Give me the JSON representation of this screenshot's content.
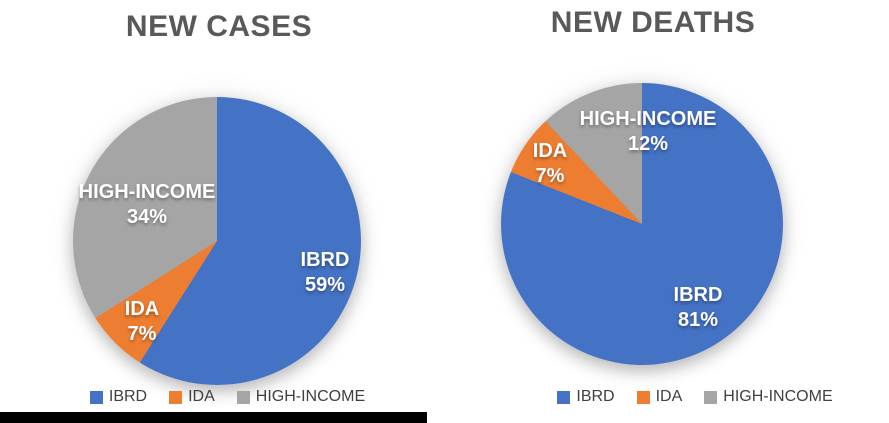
{
  "palette": {
    "ibrd_blue": "#4472C4",
    "ida_orange": "#ED7D31",
    "high_income_gray": "#A5A5A5",
    "title_text": "#595959",
    "legend_text": "#404040",
    "data_label_text": "#FFFFFF",
    "bottom_bar": "#000000"
  },
  "chart_data": [
    {
      "type": "pie",
      "title": "NEW CASES",
      "categories": [
        "IBRD",
        "IDA",
        "HIGH-INCOME"
      ],
      "values": [
        59,
        7,
        34
      ],
      "pct_labels": [
        "59%",
        "7%",
        "34%"
      ],
      "colors": [
        "#4472C4",
        "#ED7D31",
        "#A5A5A5"
      ],
      "legend": [
        "IBRD",
        "IDA",
        "HIGH-INCOME"
      ],
      "legend_position": "bottom",
      "start_angle_deg": 0,
      "direction": "clockwise"
    },
    {
      "type": "pie",
      "title": "NEW DEATHS",
      "categories": [
        "IBRD",
        "IDA",
        "HIGH-INCOME"
      ],
      "values": [
        81,
        7,
        12
      ],
      "pct_labels": [
        "81%",
        "7%",
        "12%"
      ],
      "colors": [
        "#4472C4",
        "#ED7D31",
        "#A5A5A5"
      ],
      "legend": [
        "IBRD",
        "IDA",
        "HIGH-INCOME"
      ],
      "legend_position": "bottom",
      "start_angle_deg": 0,
      "direction": "clockwise"
    }
  ]
}
